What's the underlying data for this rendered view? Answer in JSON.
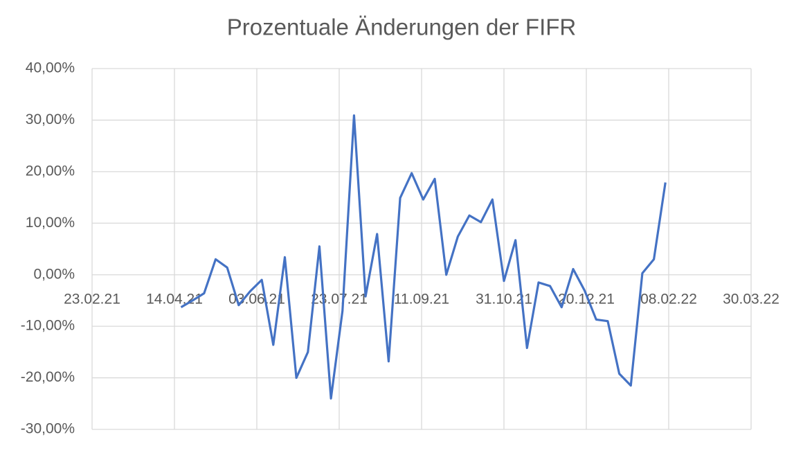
{
  "chart_data": {
    "type": "line",
    "title": "Prozentuale Änderungen der FIFR",
    "x": [
      "18.04.21",
      "25.04.21",
      "02.05.21",
      "09.05.21",
      "16.05.21",
      "23.05.21",
      "30.05.21",
      "06.06.21",
      "13.06.21",
      "20.06.21",
      "27.06.21",
      "04.07.21",
      "11.07.21",
      "18.07.21",
      "25.07.21",
      "01.08.21",
      "08.08.21",
      "15.08.21",
      "22.08.21",
      "29.08.21",
      "05.09.21",
      "12.09.21",
      "19.09.21",
      "26.09.21",
      "03.10.21",
      "10.10.21",
      "17.10.21",
      "24.10.21",
      "31.10.21",
      "07.11.21",
      "14.11.21",
      "21.11.21",
      "28.11.21",
      "05.12.21",
      "12.12.21",
      "19.12.21",
      "26.12.21",
      "02.01.22",
      "09.01.22",
      "16.01.22",
      "23.01.22",
      "30.01.22",
      "06.02.22"
    ],
    "series": [
      {
        "name": "FIFR",
        "color": "#4472c4",
        "values": [
          -6.3,
          -5.0,
          -3.6,
          3.0,
          1.4,
          -5.9,
          -3.2,
          -1.0,
          -13.6,
          3.4,
          -20.0,
          -15.0,
          5.5,
          -24.0,
          -7.0,
          30.9,
          -4.2,
          7.9,
          -16.8,
          14.9,
          19.7,
          14.6,
          18.6,
          0.0,
          7.4,
          11.5,
          10.2,
          14.6,
          -1.2,
          6.7,
          -14.2,
          -1.5,
          -2.2,
          -6.3,
          1.1,
          -3.1,
          -8.7,
          -9.0,
          -19.2,
          -21.5,
          0.3,
          3.0,
          17.9
        ]
      }
    ],
    "xlim": [
      "23.02.21",
      "30.03.22"
    ],
    "xticks": [
      "23.02.21",
      "14.04.21",
      "03.06.21",
      "23.07.21",
      "11.09.21",
      "31.10.21",
      "20.12.21",
      "08.02.22",
      "30.03.22"
    ],
    "ylim": [
      -30,
      40
    ],
    "yticks": [
      {
        "value": -30,
        "label": "-30,00%"
      },
      {
        "value": -20,
        "label": "-20,00%"
      },
      {
        "value": -10,
        "label": "-10,00%"
      },
      {
        "value": 0,
        "label": "0,00%"
      },
      {
        "value": 10,
        "label": "10,00%"
      },
      {
        "value": 20,
        "label": "20,00%"
      },
      {
        "value": 30,
        "label": "30,00%"
      },
      {
        "value": 40,
        "label": "40,00%"
      }
    ],
    "grid": true
  }
}
